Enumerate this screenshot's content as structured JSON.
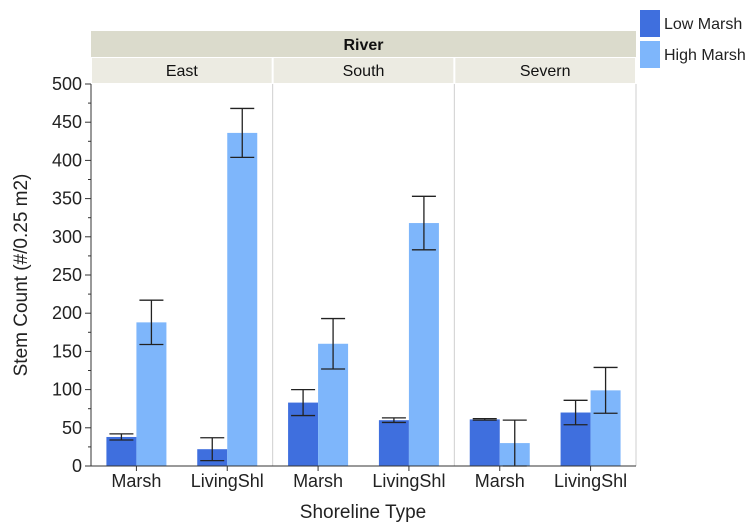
{
  "chart_data": {
    "type": "bar",
    "facet_title": "River",
    "facets": [
      "East",
      "South",
      "Severn"
    ],
    "categories": [
      "Marsh",
      "LivingShl"
    ],
    "xlabel": "Shoreline Type",
    "ylabel": "Stem Count (#/0.25 m2)",
    "ylim": [
      0,
      500
    ],
    "yticks": [
      0,
      50,
      100,
      150,
      200,
      250,
      300,
      350,
      400,
      450,
      500
    ],
    "grid": false,
    "legend_position": "top-right",
    "series": [
      {
        "name": "Low Marsh",
        "color": "#3f6fde",
        "values": [
          [
            38,
            22
          ],
          [
            83,
            60
          ],
          [
            61,
            70
          ]
        ],
        "error": [
          [
            4,
            15
          ],
          [
            17,
            3
          ],
          [
            1,
            16
          ]
        ]
      },
      {
        "name": "High Marsh",
        "color": "#7eb6fb",
        "values": [
          [
            188,
            436
          ],
          [
            160,
            318
          ],
          [
            30,
            99
          ]
        ],
        "error": [
          [
            29,
            32
          ],
          [
            33,
            35
          ],
          [
            30,
            30
          ]
        ]
      }
    ]
  }
}
